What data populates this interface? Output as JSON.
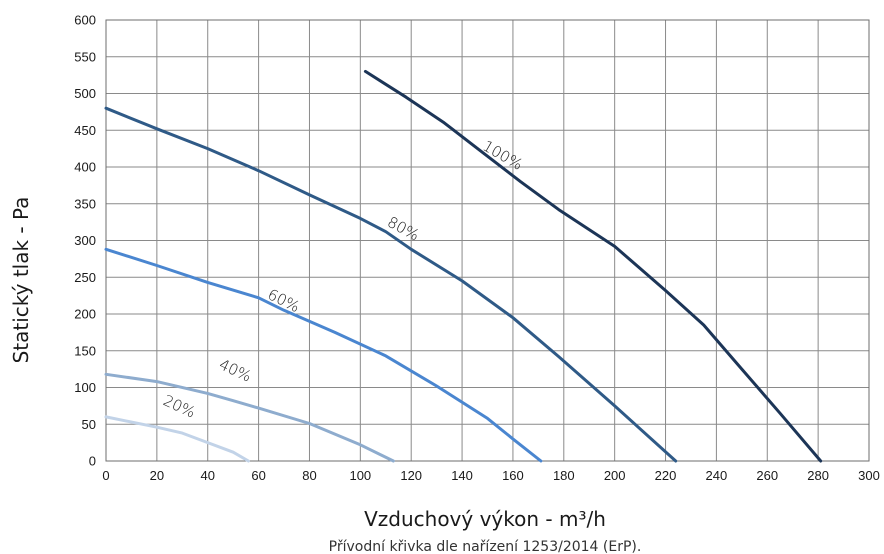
{
  "chart_data": {
    "type": "line",
    "xlabel": "Vzduchový výkon - m³/h",
    "ylabel": "Statický tlak - Pa",
    "caption": "Přívodní křivka dle nařízení 1253/2014 (ErP).",
    "xlim": [
      0,
      300
    ],
    "ylim": [
      0,
      600
    ],
    "x_ticks": [
      "0",
      "20",
      "40",
      "60",
      "80",
      "100",
      "120",
      "140",
      "160",
      "180",
      "200",
      "220",
      "240",
      "260",
      "280",
      "300"
    ],
    "y_ticks": [
      "0",
      "50",
      "100",
      "150",
      "200",
      "250",
      "300",
      "350",
      "400",
      "450",
      "500",
      "550",
      "600"
    ],
    "grid": true,
    "series": [
      {
        "name": "100%",
        "color": "#1c3557",
        "label_angle": 30,
        "points": [
          [
            102,
            530
          ],
          [
            118,
            495
          ],
          [
            133,
            460
          ],
          [
            148,
            420
          ],
          [
            163,
            380
          ],
          [
            178,
            342
          ],
          [
            200,
            292
          ],
          [
            220,
            232
          ],
          [
            235,
            185
          ],
          [
            250,
            125
          ],
          [
            265,
            65
          ],
          [
            281,
            0
          ]
        ]
      },
      {
        "name": "80%",
        "color": "#2f5a87",
        "label_angle": 28,
        "points": [
          [
            0,
            480
          ],
          [
            20,
            452
          ],
          [
            40,
            425
          ],
          [
            60,
            395
          ],
          [
            80,
            362
          ],
          [
            100,
            330
          ],
          [
            110,
            312
          ],
          [
            120,
            288
          ],
          [
            140,
            245
          ],
          [
            160,
            195
          ],
          [
            178,
            142
          ],
          [
            200,
            75
          ],
          [
            224,
            0
          ]
        ]
      },
      {
        "name": "60%",
        "color": "#4a86d0",
        "label_angle": 26,
        "points": [
          [
            0,
            288
          ],
          [
            20,
            266
          ],
          [
            40,
            243
          ],
          [
            60,
            222
          ],
          [
            70,
            205
          ],
          [
            90,
            175
          ],
          [
            110,
            143
          ],
          [
            130,
            102
          ],
          [
            150,
            58
          ],
          [
            160,
            30
          ],
          [
            171,
            0
          ]
        ]
      },
      {
        "name": "40%",
        "color": "#8eacce",
        "label_angle": 25,
        "points": [
          [
            0,
            118
          ],
          [
            20,
            108
          ],
          [
            40,
            92
          ],
          [
            50,
            82
          ],
          [
            60,
            72
          ],
          [
            80,
            51
          ],
          [
            100,
            22
          ],
          [
            113,
            0
          ]
        ]
      },
      {
        "name": "20%",
        "color": "#c2d3e8",
        "label_angle": 25,
        "points": [
          [
            0,
            60
          ],
          [
            20,
            46
          ],
          [
            30,
            38
          ],
          [
            40,
            25
          ],
          [
            50,
            12
          ],
          [
            56,
            0
          ]
        ]
      }
    ],
    "curve_labels": [
      {
        "text": "100%",
        "x": 155,
        "y": 410
      },
      {
        "text": "80%",
        "x": 116,
        "y": 310
      },
      {
        "text": "60%",
        "x": 69,
        "y": 212
      },
      {
        "text": "40%",
        "x": 50,
        "y": 117
      },
      {
        "text": "20%",
        "x": 28,
        "y": 68
      }
    ]
  }
}
